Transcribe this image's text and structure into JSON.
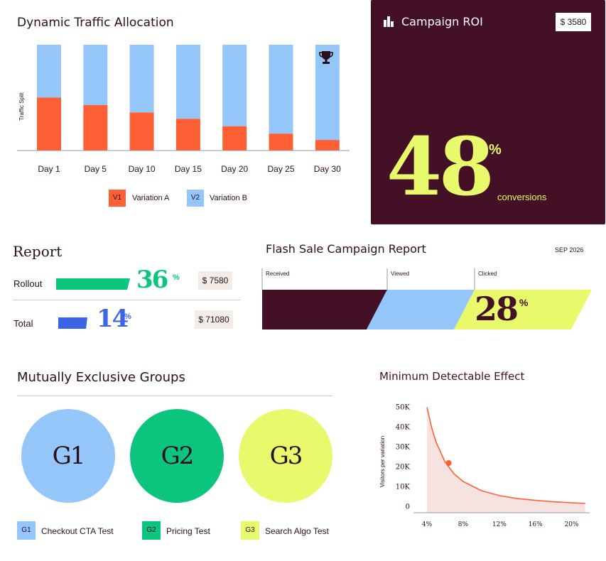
{
  "traffic": {
    "title": "Dynamic Traffic Allocation",
    "legend": [
      {
        "code": "V1",
        "label": "Variation A",
        "color": "#ff5f35"
      },
      {
        "code": "V2",
        "label": "Variation B",
        "color": "#94c6fa"
      }
    ],
    "winner_icon": "trophy-icon"
  },
  "roi": {
    "title": "Campaign ROI",
    "icon": "building-chart-icon",
    "badge": "$ 3580",
    "value": "48",
    "unit": "%",
    "subtitle": "conversions"
  },
  "report": {
    "title": "Report",
    "rows": [
      {
        "label": "Rollout",
        "pct": "36",
        "unit": "%",
        "money": "$ 7580",
        "color": "#0bc47d",
        "fraction": 0.36
      },
      {
        "label": "Total",
        "pct": "14",
        "unit": "%",
        "money": "$ 71080",
        "color": "#3c64e6",
        "fraction": 0.14
      }
    ]
  },
  "flash": {
    "title": "Flash Sale Campaign Report",
    "date": "SEP 2026",
    "stages": [
      "Received",
      "Viewed",
      "Clicked"
    ],
    "pct": "28",
    "unit": "%",
    "colors": {
      "received": "#431025",
      "viewed": "#94c6fa",
      "clicked": "#e8f96b"
    }
  },
  "groups": {
    "title": "Mutually Exclusive Groups",
    "items": [
      {
        "code": "G1",
        "label": "Checkout CTA Test",
        "color": "#94c6fa"
      },
      {
        "code": "G2",
        "label": "Pricing Test",
        "color": "#0bc47d"
      },
      {
        "code": "G3",
        "label": "Search Algo Test",
        "color": "#e8f96b"
      }
    ]
  },
  "mde": {
    "title": "Minimum Detectable Effect",
    "line_color": "#ff5f35",
    "fill_color": "#f6e3e1"
  },
  "chart_data": [
    {
      "type": "bar",
      "stacked": true,
      "title": "Dynamic Traffic Allocation",
      "xlabel": "",
      "ylabel": "Traffic Split",
      "categories": [
        "Day 1",
        "Day 5",
        "Day 10",
        "Day 15",
        "Day 20",
        "Day 25",
        "Day 30"
      ],
      "series": [
        {
          "name": "Variation A",
          "values": [
            50,
            43,
            36,
            30,
            23,
            16,
            10
          ]
        },
        {
          "name": "Variation B",
          "values": [
            50,
            57,
            64,
            70,
            77,
            84,
            90
          ]
        }
      ],
      "ylim": [
        0,
        100
      ],
      "legend": "bottom"
    },
    {
      "type": "area",
      "title": "Minimum Detectable Effect",
      "xlabel": "",
      "ylabel": "Visitors per variation",
      "x_ticks": [
        "4%",
        "8%",
        "12%",
        "16%",
        "20%"
      ],
      "y_ticks": [
        "0",
        "10K",
        "20K",
        "30K",
        "40K",
        "50K"
      ],
      "x": [
        4.0,
        4.5,
        5,
        6,
        7,
        8,
        10,
        12,
        14,
        16,
        18,
        20,
        21.5
      ],
      "values": [
        50000,
        40000,
        32500,
        22500,
        16500,
        12700,
        8100,
        5600,
        4100,
        3200,
        2500,
        2000,
        1700
      ],
      "highlight": {
        "x": 6.4,
        "y": 22000
      },
      "xlim": [
        2.5,
        22
      ],
      "ylim": [
        -3000,
        52000
      ]
    }
  ]
}
